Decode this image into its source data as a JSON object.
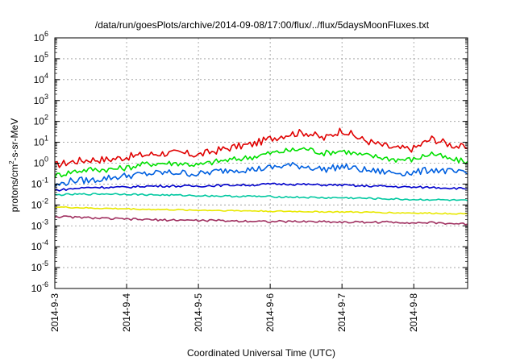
{
  "chart_data": {
    "type": "line",
    "title": "/data/run/goesPlots/archive/2014-09-08/17:00/flux/../flux/5daysMoonFluxes.txt",
    "xlabel": "Coordinated Universal Time (UTC)",
    "ylabel": "protons/cm2-s-sr-MeV",
    "yscale": "log",
    "ylim": [
      1e-06,
      1000000.0
    ],
    "xlim": [
      0,
      5.75
    ],
    "x_ticks": [
      {
        "x": 0,
        "label": "2014-9-3"
      },
      {
        "x": 1,
        "label": "2014-9-4"
      },
      {
        "x": 2,
        "label": "2014-9-5"
      },
      {
        "x": 3,
        "label": "2014-9-6"
      },
      {
        "x": 4,
        "label": "2014-9-7"
      },
      {
        "x": 5,
        "label": "2014-9-8"
      }
    ],
    "y_ticks": [
      {
        "exp": -6
      },
      {
        "exp": -5
      },
      {
        "exp": -4
      },
      {
        "exp": -3
      },
      {
        "exp": -2
      },
      {
        "exp": -1
      },
      {
        "exp": 0
      },
      {
        "exp": 1
      },
      {
        "exp": 2
      },
      {
        "exp": 3
      },
      {
        "exp": 4
      },
      {
        "exp": 5
      },
      {
        "exp": 6
      }
    ],
    "grid": true,
    "legend": "none",
    "series": [
      {
        "color": "#e00000",
        "x": [
          0,
          0.25,
          0.5,
          0.75,
          1,
          1.25,
          1.5,
          1.75,
          2,
          2.25,
          2.5,
          2.75,
          3,
          3.25,
          3.5,
          3.75,
          4,
          4.25,
          4.5,
          4.75,
          5,
          5.25,
          5.5,
          5.75
        ],
        "y": [
          0.8,
          1.2,
          1.5,
          1.5,
          2,
          2.5,
          3,
          3,
          2.5,
          4,
          6,
          8,
          15,
          25,
          30,
          15,
          40,
          15,
          8,
          5,
          5,
          15,
          8,
          5
        ]
      },
      {
        "color": "#00e000",
        "x": [
          0,
          0.25,
          0.5,
          0.75,
          1,
          1.25,
          1.5,
          1.75,
          2,
          2.25,
          2.5,
          2.75,
          3,
          3.25,
          3.5,
          3.75,
          4,
          4.25,
          4.5,
          4.75,
          5,
          5.25,
          5.5,
          5.75
        ],
        "y": [
          0.25,
          0.4,
          0.5,
          0.5,
          0.6,
          0.9,
          1,
          1,
          0.8,
          1.2,
          1.5,
          2,
          3,
          4,
          5,
          3,
          4,
          2.5,
          2,
          1.5,
          1.5,
          3,
          1.5,
          1.2
        ]
      },
      {
        "color": "#0060e0",
        "x": [
          0,
          0.25,
          0.5,
          0.75,
          1,
          1.25,
          1.5,
          1.75,
          2,
          2.25,
          2.5,
          2.75,
          3,
          3.25,
          3.5,
          3.75,
          4,
          4.25,
          4.5,
          4.75,
          5,
          5.25,
          5.5,
          5.75
        ],
        "y": [
          0.08,
          0.15,
          0.15,
          0.2,
          0.25,
          0.3,
          0.35,
          0.35,
          0.3,
          0.4,
          0.5,
          0.5,
          0.6,
          0.8,
          0.7,
          0.5,
          0.7,
          0.5,
          0.4,
          0.35,
          0.35,
          0.5,
          0.4,
          0.3
        ]
      },
      {
        "color": "#0000cc",
        "x": [
          0,
          0.25,
          0.5,
          0.75,
          1,
          1.25,
          1.5,
          1.75,
          2,
          2.25,
          2.5,
          2.75,
          3,
          3.25,
          3.5,
          3.75,
          4,
          4.25,
          4.5,
          4.75,
          5,
          5.25,
          5.5,
          5.75
        ],
        "y": [
          0.05,
          0.06,
          0.07,
          0.07,
          0.07,
          0.08,
          0.08,
          0.08,
          0.08,
          0.085,
          0.09,
          0.09,
          0.1,
          0.1,
          0.095,
          0.09,
          0.09,
          0.08,
          0.08,
          0.075,
          0.07,
          0.07,
          0.065,
          0.06
        ]
      },
      {
        "color": "#00c8a0",
        "x": [
          0,
          0.25,
          0.5,
          0.75,
          1,
          1.25,
          1.5,
          1.75,
          2,
          2.25,
          2.5,
          2.75,
          3,
          3.25,
          3.5,
          3.75,
          4,
          4.25,
          4.5,
          4.75,
          5,
          5.25,
          5.5,
          5.75
        ],
        "y": [
          0.03,
          0.032,
          0.033,
          0.034,
          0.033,
          0.031,
          0.03,
          0.029,
          0.028,
          0.027,
          0.026,
          0.026,
          0.025,
          0.024,
          0.023,
          0.022,
          0.022,
          0.021,
          0.02,
          0.019,
          0.018,
          0.018,
          0.017,
          0.016
        ]
      },
      {
        "color": "#e8e800",
        "x": [
          0,
          0.25,
          0.5,
          0.75,
          1,
          1.25,
          1.5,
          1.75,
          2,
          2.25,
          2.5,
          2.75,
          3,
          3.25,
          3.5,
          3.75,
          4,
          4.25,
          4.5,
          4.75,
          5,
          5.25,
          5.5,
          5.75
        ],
        "y": [
          0.008,
          0.0075,
          0.007,
          0.0068,
          0.0065,
          0.0062,
          0.006,
          0.0058,
          0.0056,
          0.0055,
          0.0053,
          0.0052,
          0.005,
          0.0049,
          0.0048,
          0.0047,
          0.0046,
          0.0045,
          0.0044,
          0.0042,
          0.0041,
          0.004,
          0.0039,
          0.0038
        ]
      },
      {
        "color": "#a03060",
        "x": [
          0,
          0.25,
          0.5,
          0.75,
          1,
          1.25,
          1.5,
          1.75,
          2,
          2.25,
          2.5,
          2.75,
          3,
          3.25,
          3.5,
          3.75,
          4,
          4.25,
          4.5,
          4.75,
          5,
          5.25,
          5.5,
          5.75
        ],
        "y": [
          0.0028,
          0.0026,
          0.0024,
          0.0022,
          0.0021,
          0.002,
          0.0019,
          0.0019,
          0.0018,
          0.0018,
          0.0017,
          0.0017,
          0.0016,
          0.0016,
          0.0016,
          0.0016,
          0.0015,
          0.0015,
          0.0015,
          0.0015,
          0.0014,
          0.0014,
          0.0013,
          0.0012
        ]
      }
    ]
  }
}
